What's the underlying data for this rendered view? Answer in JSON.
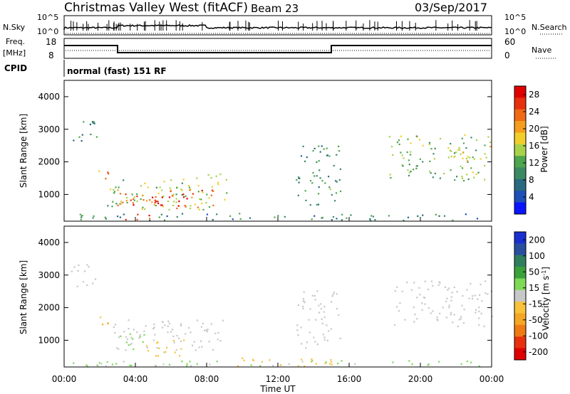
{
  "header": {
    "title": "Christmas Valley West (fitACF)",
    "beam": "Beam 23",
    "date": "03/Sep/2017"
  },
  "nsky_panel": {
    "left_label": "N.Sky",
    "right_label": "N.Search",
    "left_ticks": [
      "10^5",
      "10^0"
    ],
    "right_ticks": [
      "10^5",
      "10^0"
    ]
  },
  "freq_panel": {
    "left_label_1": "Freq.",
    "left_label_2": "[MHz]",
    "right_label": "Nave",
    "left_ticks": [
      "18",
      "8"
    ],
    "right_ticks": [
      "60",
      "0"
    ]
  },
  "cpid_panel": {
    "label": "CPID",
    "mode_text": "normal (fast) 151 RF"
  },
  "colors": {
    "power_scale": [
      "#0a14ff",
      "#1f4fb8",
      "#2a6a80",
      "#3c8a62",
      "#4ea64e",
      "#a9d24a",
      "#f2ce2a",
      "#f59d1e",
      "#f06a14",
      "#e8300e",
      "#e00000"
    ],
    "velocity_scale": [
      "#e00000",
      "#e8300e",
      "#f07a14",
      "#f5a623",
      "#f8c23a",
      "#c8c8c8",
      "#7ed957",
      "#3aa23a",
      "#2f7f5f",
      "#2a4f9f",
      "#1a2fd0"
    ]
  },
  "chart_data": [
    {
      "type": "heatmap",
      "panel": "power",
      "ylabel": "Slant Range [km]",
      "x_range": [
        "00:00",
        "24:00"
      ],
      "ylim": [
        180,
        4500
      ],
      "y_ticks": [
        1000,
        2000,
        3000,
        4000
      ],
      "colorbar": {
        "label": "Power [dB]",
        "ticks": [
          4,
          8,
          12,
          16,
          20,
          24,
          28
        ],
        "range": [
          0,
          30
        ]
      },
      "regions": [
        {
          "t": [
            0.3,
            1.8
          ],
          "r": [
            2600,
            3300
          ],
          "value": 10
        },
        {
          "t": [
            1.6,
            2.6
          ],
          "r": [
            1350,
            1750
          ],
          "value": 21
        },
        {
          "t": [
            2.4,
            9.2
          ],
          "r": [
            500,
            1600
          ],
          "value": 14
        },
        {
          "t": [
            2.8,
            8.5
          ],
          "r": [
            550,
            1150
          ],
          "value": 24
        },
        {
          "t": [
            3.5,
            7.0
          ],
          "r": [
            650,
            950
          ],
          "value": 28
        },
        {
          "t": [
            3.2,
            5.5
          ],
          "r": [
            200,
            380
          ],
          "value": 26
        },
        {
          "t": [
            0.0,
            23.5
          ],
          "r": [
            180,
            400
          ],
          "value": 9
        },
        {
          "t": [
            13.0,
            15.5
          ],
          "r": [
            600,
            2500
          ],
          "value": 10
        },
        {
          "t": [
            18.2,
            24.0
          ],
          "r": [
            1400,
            2800
          ],
          "value": 13
        },
        {
          "t": [
            21.5,
            24.0
          ],
          "r": [
            2000,
            2500
          ],
          "value": 17
        }
      ]
    },
    {
      "type": "heatmap",
      "panel": "velocity",
      "ylabel": "Slant Range [km]",
      "xlabel": "Time UT",
      "x_ticks": [
        "00:00",
        "04:00",
        "08:00",
        "12:00",
        "16:00",
        "20:00",
        "00:00"
      ],
      "ylim": [
        180,
        4500
      ],
      "y_ticks": [
        1000,
        2000,
        3000,
        4000
      ],
      "colorbar": {
        "label": "Velocity [m s^-1]",
        "ticks": [
          200,
          100,
          50,
          15,
          -15,
          -50,
          -100,
          -200
        ],
        "range": [
          -250,
          250
        ]
      },
      "regions": [
        {
          "t": [
            0.3,
            1.8
          ],
          "r": [
            2600,
            3300
          ],
          "value": 0
        },
        {
          "t": [
            1.6,
            2.6
          ],
          "r": [
            1350,
            1750
          ],
          "value": -60
        },
        {
          "t": [
            2.6,
            9.0
          ],
          "r": [
            600,
            1600
          ],
          "value": 0
        },
        {
          "t": [
            4.5,
            7.0
          ],
          "r": [
            500,
            1000
          ],
          "value": -40
        },
        {
          "t": [
            2.8,
            4.5
          ],
          "r": [
            700,
            1200
          ],
          "value": 40
        },
        {
          "t": [
            8.5,
            15.5
          ],
          "r": [
            180,
            450
          ],
          "value": -40
        },
        {
          "t": [
            0.0,
            24.0
          ],
          "r": [
            180,
            350
          ],
          "value": 30
        },
        {
          "t": [
            13.0,
            15.5
          ],
          "r": [
            700,
            2500
          ],
          "value": 0
        },
        {
          "t": [
            18.5,
            24.0
          ],
          "r": [
            1400,
            2800
          ],
          "value": 0
        }
      ]
    }
  ]
}
